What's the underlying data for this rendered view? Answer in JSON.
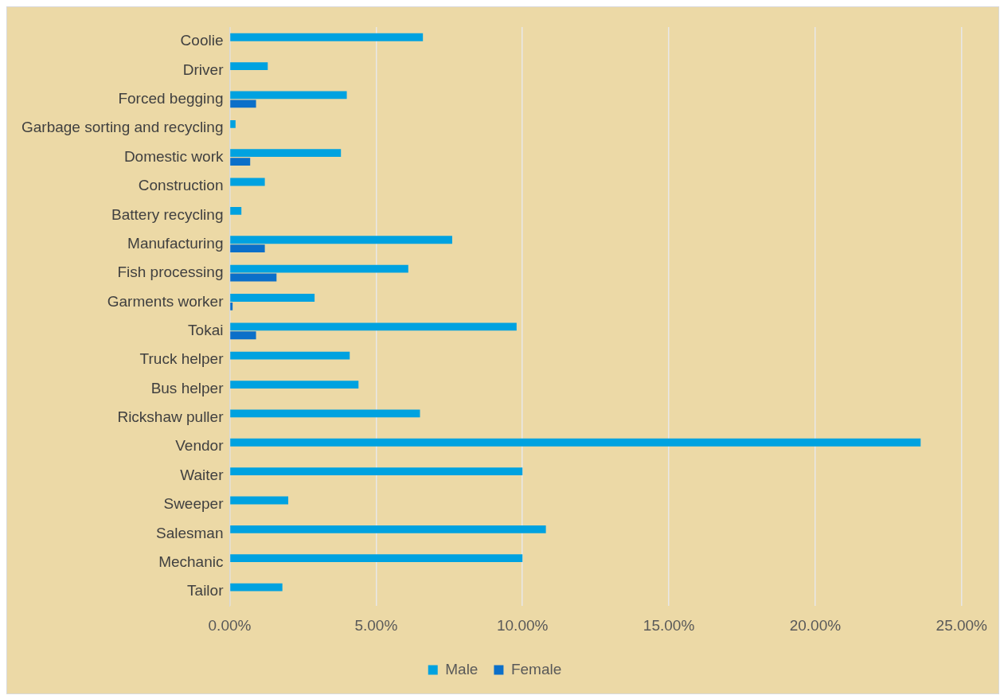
{
  "chart_data": {
    "type": "bar",
    "orientation": "horizontal",
    "categories": [
      "Coolie",
      "Driver",
      "Forced begging",
      "Garbage sorting and recycling",
      "Domestic work",
      "Construction",
      "Battery recycling",
      "Manufacturing",
      "Fish processing",
      "Garments worker",
      "Tokai",
      "Truck helper",
      "Bus helper",
      "Rickshaw puller",
      "Vendor",
      "Waiter",
      "Sweeper",
      "Salesman",
      "Mechanic",
      "Tailor"
    ],
    "series": [
      {
        "name": "Male",
        "color": "#00a2e0",
        "values": [
          6.6,
          1.3,
          4.0,
          0.2,
          3.8,
          1.2,
          0.4,
          7.6,
          6.1,
          2.9,
          9.8,
          4.1,
          4.4,
          6.5,
          23.6,
          10.0,
          2.0,
          10.8,
          10.0,
          1.8
        ]
      },
      {
        "name": "Female",
        "color": "#0b6fc9",
        "values": [
          null,
          null,
          0.9,
          null,
          0.7,
          null,
          null,
          1.2,
          1.6,
          0.1,
          0.9,
          null,
          null,
          null,
          null,
          null,
          null,
          null,
          null,
          null
        ]
      }
    ],
    "xlim": [
      0,
      25
    ],
    "xticks": [
      {
        "value": 0,
        "label": "0.00%"
      },
      {
        "value": 5,
        "label": "5.00%"
      },
      {
        "value": 10,
        "label": "10.00%"
      },
      {
        "value": 15,
        "label": "15.00%"
      },
      {
        "value": 20,
        "label": "20.00%"
      },
      {
        "value": 25,
        "label": "25.00%"
      }
    ],
    "grid": "x",
    "legend": "bottom"
  }
}
